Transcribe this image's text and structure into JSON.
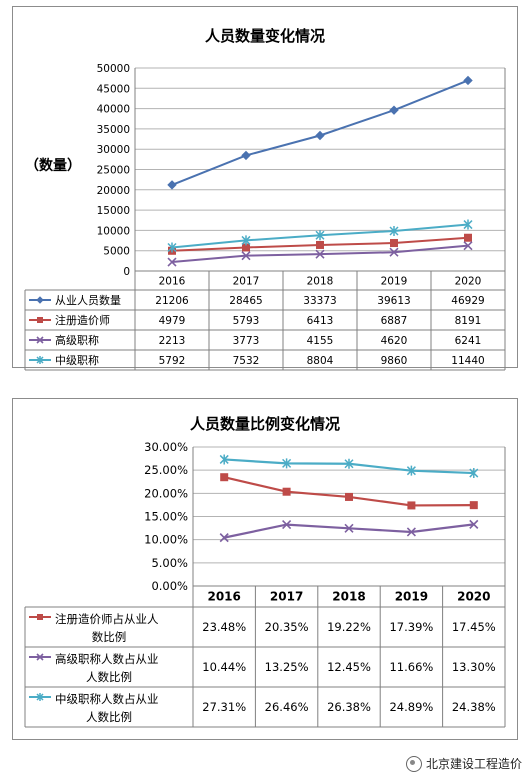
{
  "watermark": "北京建设工程造价",
  "chart_data": [
    {
      "type": "line",
      "title": "人员数量变化情况",
      "ylabel": "（数量）",
      "x": [
        "2016",
        "2017",
        "2018",
        "2019",
        "2020"
      ],
      "ylim": [
        0,
        50000
      ],
      "yticks": [
        "50000",
        "45000",
        "40000",
        "35000",
        "30000",
        "25000",
        "20000",
        "15000",
        "10000",
        "5000",
        "0"
      ],
      "grid": true,
      "legend_placement": "data-table",
      "series": [
        {
          "name": "从业人员数量",
          "values": [
            21206,
            28465,
            33373,
            39613,
            46929
          ],
          "labels": [
            "21206",
            "28465",
            "33373",
            "39613",
            "46929"
          ],
          "color": "#4a72b0",
          "marker": "diamond"
        },
        {
          "name": "注册造价师",
          "values": [
            4979,
            5793,
            6413,
            6887,
            8191
          ],
          "labels": [
            "4979",
            "5793",
            "6413",
            "6887",
            "8191"
          ],
          "color": "#be4b48",
          "marker": "square"
        },
        {
          "name": "高级职称",
          "values": [
            2213,
            3773,
            4155,
            4620,
            6241
          ],
          "labels": [
            "2213",
            "3773",
            "4155",
            "4620",
            "6241"
          ],
          "color": "#7d60a0",
          "marker": "x"
        },
        {
          "name": "中级职称",
          "values": [
            5792,
            7532,
            8804,
            9860,
            11440
          ],
          "labels": [
            "5792",
            "7532",
            "8804",
            "9860",
            "11440"
          ],
          "color": "#4bacc6",
          "marker": "star"
        }
      ]
    },
    {
      "type": "line",
      "title": "人员数量比例变化情况",
      "x": [
        "2016",
        "2017",
        "2018",
        "2019",
        "2020"
      ],
      "ylim": [
        0,
        30
      ],
      "yticks": [
        "30.00%",
        "25.00%",
        "20.00%",
        "15.00%",
        "10.00%",
        "5.00%",
        "0.00%"
      ],
      "grid": true,
      "legend_placement": "data-table",
      "series": [
        {
          "name": "注册造价师占从业人数比例",
          "name_lines": [
            "注册造价师占从业人",
            "数比例"
          ],
          "values": [
            23.48,
            20.35,
            19.22,
            17.39,
            17.45
          ],
          "labels": [
            "23.48%",
            "20.35%",
            "19.22%",
            "17.39%",
            "17.45%"
          ],
          "color": "#be4b48",
          "marker": "square"
        },
        {
          "name": "高级职称人数占从业人数比例",
          "name_lines": [
            "高级职称人数占从业",
            "人数比例"
          ],
          "values": [
            10.44,
            13.25,
            12.45,
            11.66,
            13.3
          ],
          "labels": [
            "10.44%",
            "13.25%",
            "12.45%",
            "11.66%",
            "13.30%"
          ],
          "color": "#7d60a0",
          "marker": "x"
        },
        {
          "name": "中级职称人数占从业人数比例",
          "name_lines": [
            "中级职称人数占从业",
            "人数比例"
          ],
          "values": [
            27.31,
            26.46,
            26.38,
            24.89,
            24.38
          ],
          "labels": [
            "27.31%",
            "26.46%",
            "26.38%",
            "24.89%",
            "24.38%"
          ],
          "color": "#4bacc6",
          "marker": "star"
        }
      ]
    }
  ]
}
